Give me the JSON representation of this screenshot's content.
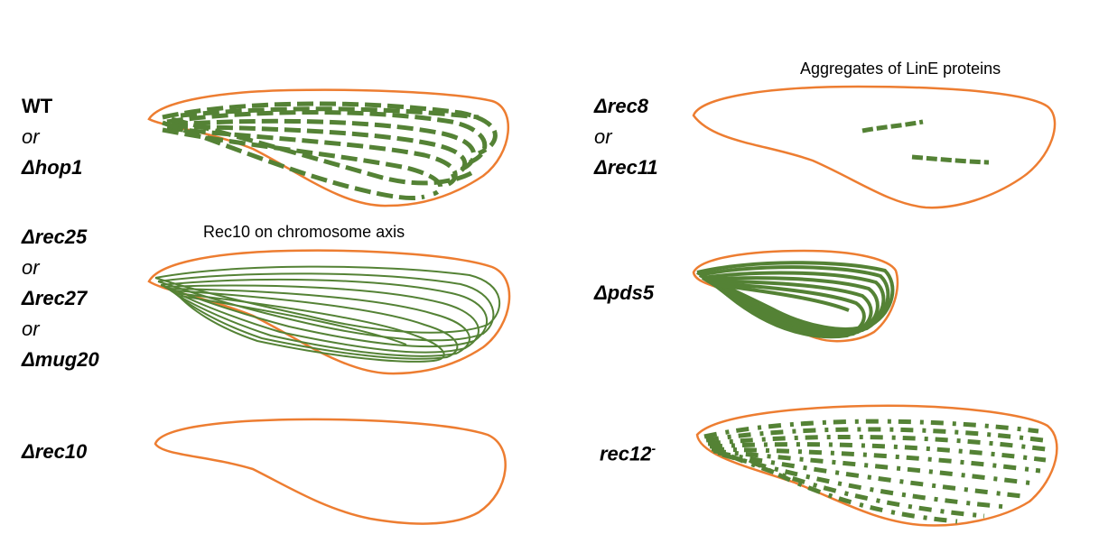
{
  "labels": {
    "wt": "WT",
    "or": "or",
    "hop1": "Δhop1",
    "rec25": "Δrec25",
    "rec27": "Δrec27",
    "mug20": "Δmug20",
    "rec10": "Δrec10",
    "rec8": "Δrec8",
    "rec11": "Δrec11",
    "pds5": "Δpds5",
    "rec12": "rec12",
    "rec12_sup": "-"
  },
  "annotations": {
    "axis": "Rec10 on chromosome axis",
    "aggregates": "Aggregates of LinE proteins"
  },
  "colors": {
    "nucleus_outline": "#ed7d31",
    "linear_elements": "#548235",
    "text": "#000000"
  }
}
